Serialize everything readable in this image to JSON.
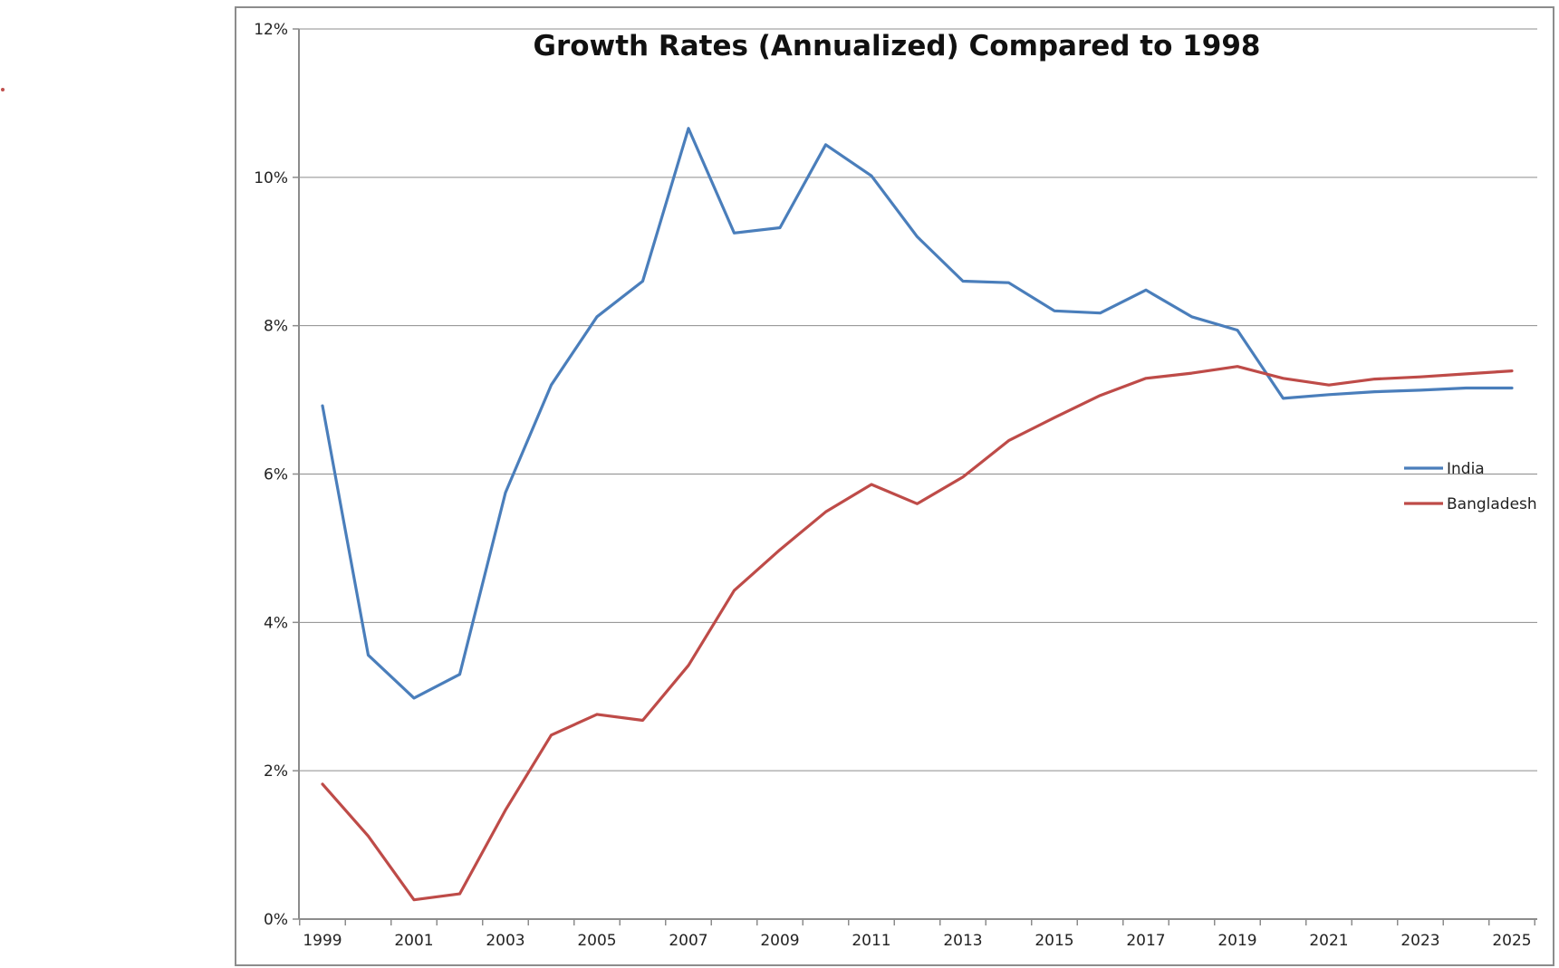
{
  "chart_data": {
    "type": "line",
    "title": "Growth Rates (Annualized) Compared to 1998",
    "xlabel": "",
    "ylabel": "",
    "x": [
      1999,
      2000,
      2001,
      2002,
      2003,
      2004,
      2005,
      2006,
      2007,
      2008,
      2009,
      2010,
      2011,
      2012,
      2013,
      2014,
      2015,
      2016,
      2017,
      2018,
      2019,
      2020,
      2021,
      2022,
      2023,
      2024,
      2025
    ],
    "x_tick_labels": [
      "1999",
      "2001",
      "2003",
      "2005",
      "2007",
      "2009",
      "2011",
      "2013",
      "2015",
      "2017",
      "2019",
      "2021",
      "2023",
      "2025"
    ],
    "y_tick_labels": [
      "0%",
      "2%",
      "4%",
      "6%",
      "8%",
      "10%",
      "12%"
    ],
    "ylim": [
      0,
      12
    ],
    "y_unit": "%",
    "grid": "horizontal",
    "legend_position": "right",
    "series": [
      {
        "name": "India",
        "color": "#4A7EBB",
        "values": [
          6.92,
          3.56,
          2.98,
          3.3,
          5.75,
          7.2,
          8.12,
          8.6,
          10.66,
          9.25,
          9.32,
          10.44,
          10.02,
          9.2,
          8.6,
          8.58,
          8.2,
          8.17,
          8.48,
          8.12,
          7.94,
          7.02,
          7.07,
          7.11,
          7.13,
          7.16,
          7.16
        ]
      },
      {
        "name": "Bangladesh",
        "color": "#BE4B48",
        "values": [
          1.82,
          1.12,
          0.26,
          0.34,
          1.47,
          2.48,
          2.76,
          2.68,
          3.42,
          4.43,
          4.98,
          5.49,
          5.86,
          5.6,
          5.96,
          6.45,
          6.76,
          7.06,
          7.29,
          7.36,
          7.45,
          7.29,
          7.2,
          7.28,
          7.31,
          7.35,
          7.39
        ]
      }
    ]
  },
  "colors": {
    "axis": "#8c8c8c",
    "gridline": "#8c8c8c",
    "frame": "#8c8c8c",
    "stray_mark": "#c0504d"
  }
}
